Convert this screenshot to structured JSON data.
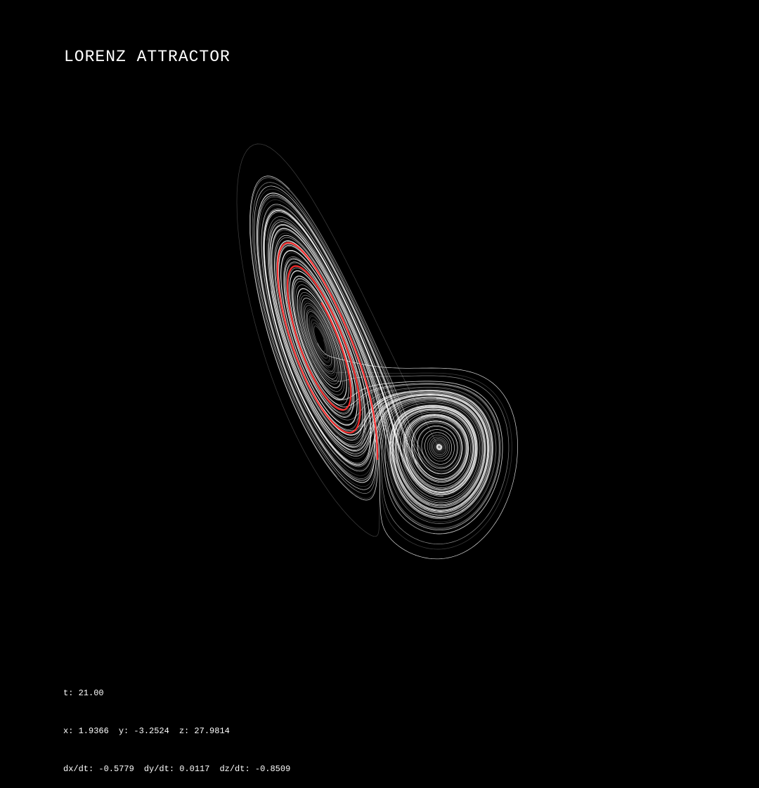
{
  "header": {
    "title": "LORENZ ATTRACTOR"
  },
  "stats": {
    "t": "t: 21.00",
    "x": "x: 1.9366",
    "y": "y: -3.2524",
    "z": "z: 27.9814",
    "dx": "dx/dt: -0.5779",
    "dy": "dy/dt: 0.0117",
    "dz": "dz/dt: -0.8509"
  }
}
